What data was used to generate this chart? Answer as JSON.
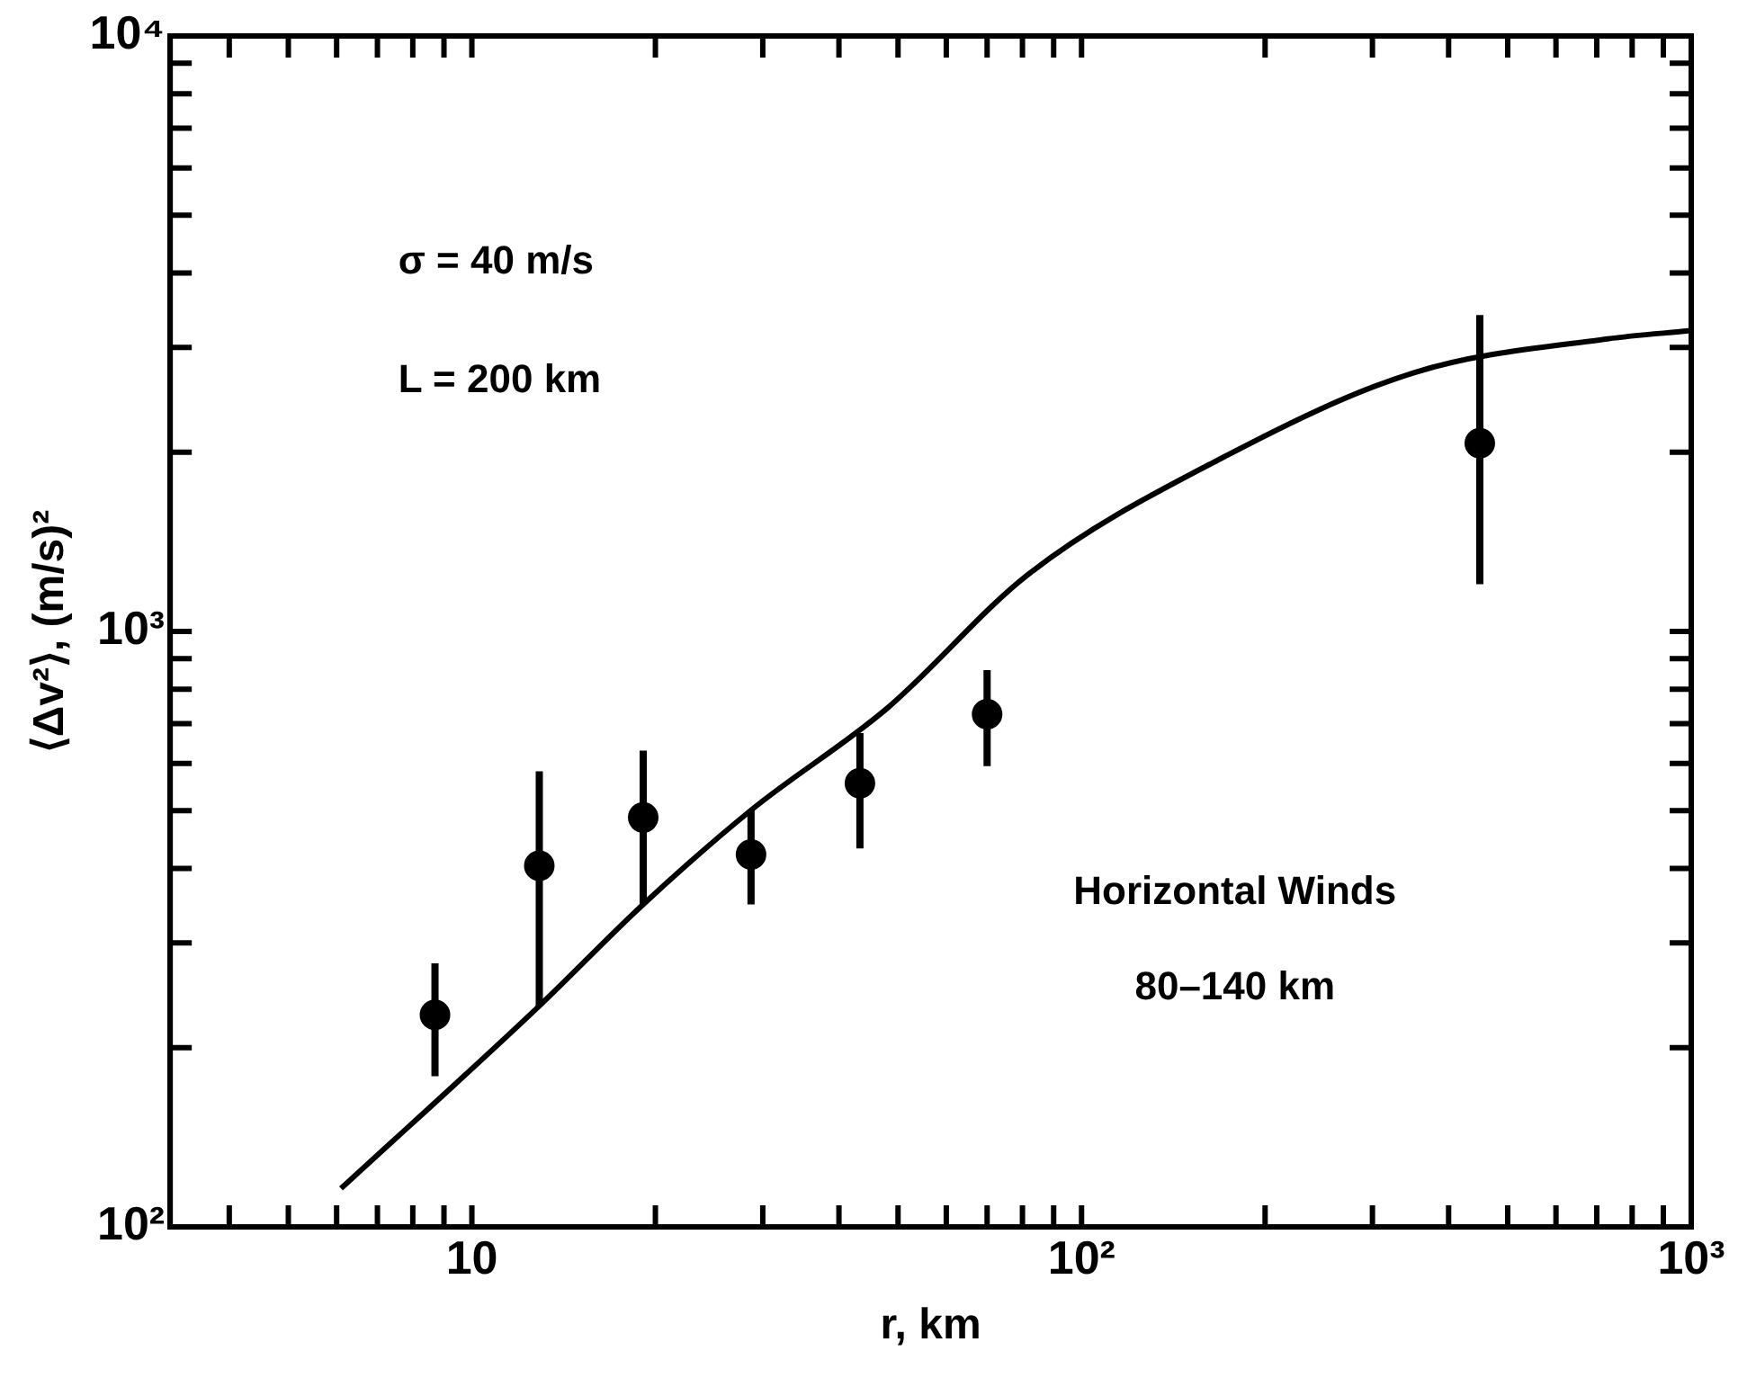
{
  "chart_data": {
    "type": "scatter",
    "xlabel": "r, km",
    "ylabel": "⟨Δv²⟩, (m/s)²",
    "log": "xy",
    "xlim": [
      3.2,
      1000
    ],
    "ylim": [
      100,
      10000
    ],
    "xticks": [
      {
        "value": 4,
        "label": null
      },
      {
        "value": 5,
        "label": null
      },
      {
        "value": 6,
        "label": null
      },
      {
        "value": 7,
        "label": null
      },
      {
        "value": 8,
        "label": null
      },
      {
        "value": 9,
        "label": null
      },
      {
        "value": 10,
        "label": "10"
      },
      {
        "value": 20,
        "label": null
      },
      {
        "value": 30,
        "label": null
      },
      {
        "value": 40,
        "label": null
      },
      {
        "value": 50,
        "label": null
      },
      {
        "value": 60,
        "label": null
      },
      {
        "value": 70,
        "label": null
      },
      {
        "value": 80,
        "label": null
      },
      {
        "value": 90,
        "label": null
      },
      {
        "value": 100,
        "label": "10²"
      },
      {
        "value": 200,
        "label": null
      },
      {
        "value": 300,
        "label": null
      },
      {
        "value": 400,
        "label": null
      },
      {
        "value": 500,
        "label": null
      },
      {
        "value": 600,
        "label": null
      },
      {
        "value": 700,
        "label": null
      },
      {
        "value": 800,
        "label": null
      },
      {
        "value": 900,
        "label": null
      },
      {
        "value": 1000,
        "label": "10³"
      }
    ],
    "yticks": [
      {
        "value": 100,
        "label": "10²"
      },
      {
        "value": 200,
        "label": null
      },
      {
        "value": 300,
        "label": null
      },
      {
        "value": 400,
        "label": null
      },
      {
        "value": 500,
        "label": null
      },
      {
        "value": 600,
        "label": null
      },
      {
        "value": 700,
        "label": null
      },
      {
        "value": 800,
        "label": null
      },
      {
        "value": 900,
        "label": null
      },
      {
        "value": 1000,
        "label": "10³"
      },
      {
        "value": 2000,
        "label": null
      },
      {
        "value": 3000,
        "label": null
      },
      {
        "value": 4000,
        "label": null
      },
      {
        "value": 5000,
        "label": null
      },
      {
        "value": 6000,
        "label": null
      },
      {
        "value": 7000,
        "label": null
      },
      {
        "value": 8000,
        "label": null
      },
      {
        "value": 9000,
        "label": null
      },
      {
        "value": 10000,
        "label": "10⁴"
      }
    ],
    "grid": false,
    "legend": false,
    "marker": "circle",
    "series": [
      {
        "color": "#000000",
        "x": [
          8.7,
          12.9,
          19.1,
          28.7,
          43.3,
          70,
          450
        ],
        "values": [
          227,
          404,
          487,
          422,
          556,
          726,
          2070
        ],
        "errors": [
          [
            179,
            277
          ],
          [
            235,
            582
          ],
          [
            348,
            631
          ],
          [
            348,
            501
          ],
          [
            432,
            675
          ],
          [
            594,
            861
          ],
          [
            1200,
            3400
          ]
        ]
      },
      {
        "type": "line",
        "color": "#000000",
        "marker": "none",
        "line_style": "solid",
        "x": [
          6.1,
          12.9,
          19.1,
          28.7,
          48,
          82,
          169,
          351,
          729,
          1000
        ],
        "values": [
          116,
          235,
          348,
          501,
          743,
          1250,
          1950,
          2720,
          3100,
          3200
        ]
      }
    ],
    "annotations": [
      "σ = 40 m/s",
      "L = 200 km",
      "Horizontal Winds",
      "80–140 km"
    ]
  }
}
